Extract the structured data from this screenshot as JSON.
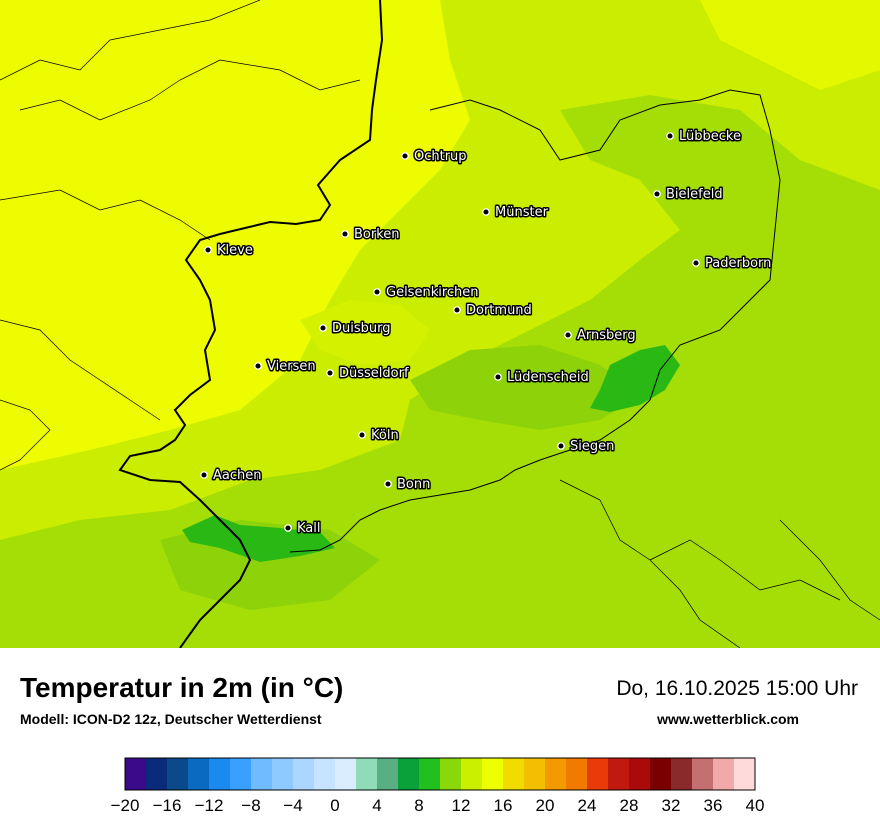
{
  "title": "Temperatur in 2m (in °C)",
  "subtitle": "Modell: ICON-D2 12z, Deutscher Wetterdienst",
  "datetime": "Do, 16.10.2025 15:00 Uhr",
  "website": "www.wetterblick.com",
  "map": {
    "cities": [
      {
        "name": "Lübbecke"
      },
      {
        "name": "Ochtrup"
      },
      {
        "name": "Bielefeld"
      },
      {
        "name": "Münster"
      },
      {
        "name": "Borken"
      },
      {
        "name": "Kleve"
      },
      {
        "name": "Paderborn"
      },
      {
        "name": "Gelsenkirchen"
      },
      {
        "name": "Dortmund"
      },
      {
        "name": "Duisburg"
      },
      {
        "name": "Arnsberg"
      },
      {
        "name": "Viersen"
      },
      {
        "name": "Düsseldorf"
      },
      {
        "name": "Lüdenscheid"
      },
      {
        "name": "Köln"
      },
      {
        "name": "Siegen"
      },
      {
        "name": "Aachen"
      },
      {
        "name": "Bonn"
      },
      {
        "name": "Kall"
      }
    ]
  },
  "colorbar": {
    "unit": "°C",
    "colors": [
      "#3a0a8a",
      "#0a2a7a",
      "#0a4a8a",
      "#0a6ac0",
      "#1a8af0",
      "#3aa0ff",
      "#70baff",
      "#8ecaff",
      "#aad6ff",
      "#c6e4ff",
      "#daedff",
      "#90dcb8",
      "#5aae84",
      "#0aa03a",
      "#22c01e",
      "#8ad80a",
      "#caf000",
      "#eeff00",
      "#f2dc00",
      "#f2c000",
      "#f29a00",
      "#f27a00",
      "#ea3a0a",
      "#c01a10",
      "#aa0a0a",
      "#7a0000",
      "#8a2a2a",
      "#c47070",
      "#f0aaaa",
      "#ffdada"
    ],
    "ticks": [
      "−20",
      "−16",
      "−12",
      "−8",
      "−4",
      "0",
      "4",
      "8",
      "12",
      "16",
      "20",
      "24",
      "28",
      "32",
      "36",
      "40"
    ]
  }
}
